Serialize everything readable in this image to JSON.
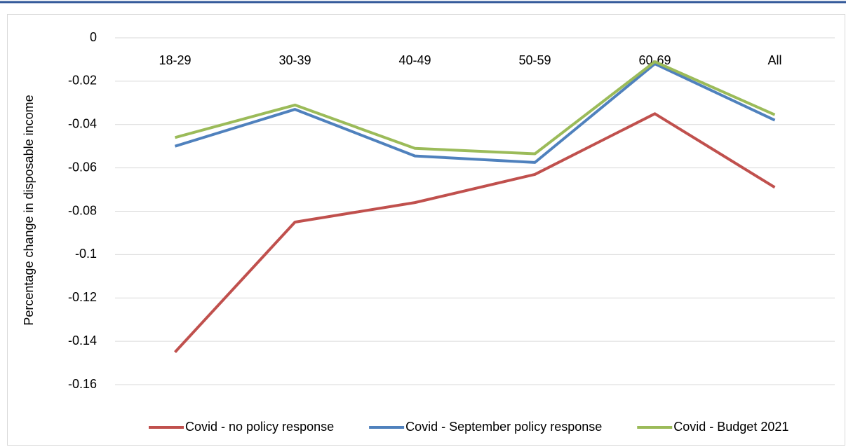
{
  "chart_data": {
    "type": "line",
    "y_label": "Percentage change in disposable income",
    "categories": [
      "18-29",
      "30-39",
      "40-49",
      "50-59",
      "60-69",
      "All"
    ],
    "series": [
      {
        "name": "Covid - no policy response",
        "color": "#c0504d",
        "values": [
          -0.145,
          -0.085,
          -0.076,
          -0.063,
          -0.035,
          -0.069
        ]
      },
      {
        "name": "Covid - September policy response",
        "color": "#4f81bd",
        "values": [
          -0.05,
          -0.033,
          -0.0545,
          -0.0575,
          -0.012,
          -0.038
        ]
      },
      {
        "name": "Covid - Budget 2021",
        "color": "#9bbb59",
        "values": [
          -0.046,
          -0.031,
          -0.051,
          -0.0535,
          -0.011,
          -0.0355
        ]
      }
    ],
    "ylim": [
      -0.16,
      0
    ],
    "yticks": [
      0,
      -0.02,
      -0.04,
      -0.06,
      -0.08,
      -0.1,
      -0.12,
      -0.14,
      -0.16
    ],
    "grid": true,
    "legend": "bottom"
  }
}
